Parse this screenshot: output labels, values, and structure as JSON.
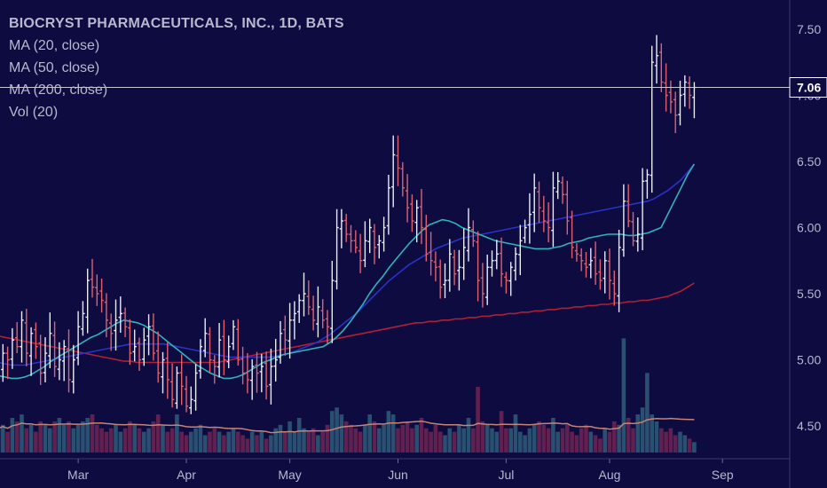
{
  "legend": {
    "title": "BIOCRYST PHARMACEUTICALS, INC., 1D, BATS",
    "ma20": "MA (20, close)",
    "ma50": "MA (50, close)",
    "ma200": "MA (200, close)",
    "vol": "Vol (20)"
  },
  "colors": {
    "background": "#0d0b3f",
    "up_bar": "#e8ecf6",
    "down_bar": "#e0606e",
    "ma20": "#2fb3be",
    "ma50": "#2a32c8",
    "ma200": "#b01f33",
    "vol_up": "#2c5877",
    "vol_down": "#6a2352",
    "vol_ma": "#c58474",
    "price_line": "#c8c8d6",
    "axis_line": "#3a3870"
  },
  "chart_data": {
    "type": "ohlc",
    "symbol": "BIOCRYST PHARMACEUTICALS, INC.",
    "interval": "1D",
    "exchange": "BATS",
    "y_ticks": [
      "7.50",
      "7.00",
      "6.50",
      "6.00",
      "5.50",
      "5.00",
      "4.50"
    ],
    "y_tick_values": [
      7.5,
      7.0,
      6.5,
      6.0,
      5.5,
      5.0,
      4.5
    ],
    "ylim": [
      4.4,
      7.6
    ],
    "current_price": 7.06,
    "current_price_label": "7.06",
    "x_ticks": [
      {
        "label": "Mar",
        "bar": 17
      },
      {
        "label": "Apr",
        "bar": 40
      },
      {
        "label": "May",
        "bar": 62
      },
      {
        "label": "Jun",
        "bar": 85
      },
      {
        "label": "Jul",
        "bar": 108
      },
      {
        "label": "Aug",
        "bar": 130
      },
      {
        "label": "Sep",
        "bar": 154
      }
    ],
    "bars_total_slots": 158,
    "closes": [
      4.95,
      5.05,
      5.0,
      5.15,
      5.1,
      5.3,
      5.05,
      5.2,
      5.1,
      4.9,
      5.05,
      5.2,
      4.95,
      5.0,
      5.1,
      4.85,
      5.0,
      5.25,
      5.35,
      5.6,
      5.55,
      5.5,
      5.45,
      5.3,
      5.2,
      5.3,
      5.35,
      5.25,
      5.05,
      5.1,
      5.0,
      5.15,
      5.25,
      5.05,
      4.9,
      5.0,
      4.85,
      4.7,
      4.9,
      4.8,
      4.65,
      4.7,
      4.9,
      5.1,
      5.2,
      5.0,
      4.95,
      5.15,
      5.0,
      5.1,
      5.25,
      5.0,
      4.9,
      4.85,
      4.95,
      4.9,
      4.95,
      4.8,
      4.95,
      5.0,
      5.2,
      5.15,
      5.3,
      5.35,
      5.45,
      5.5,
      5.4,
      5.3,
      5.4,
      5.3,
      5.25,
      5.6,
      6.0,
      6.05,
      5.95,
      5.9,
      5.85,
      5.75,
      5.9,
      6.0,
      5.85,
      5.9,
      6.0,
      6.3,
      6.55,
      6.45,
      6.3,
      6.15,
      6.05,
      6.15,
      6.0,
      5.8,
      5.75,
      5.7,
      5.55,
      5.6,
      5.8,
      5.65,
      5.7,
      5.85,
      6.0,
      5.9,
      5.6,
      5.5,
      5.7,
      5.75,
      5.8,
      5.65,
      5.6,
      5.7,
      5.8,
      5.9,
      6.0,
      6.1,
      6.3,
      6.15,
      6.05,
      6.0,
      6.3,
      6.35,
      6.25,
      6.05,
      5.85,
      5.8,
      5.75,
      5.7,
      5.75,
      5.65,
      5.6,
      5.75,
      5.6,
      5.5,
      5.85,
      6.2,
      6.05,
      5.9,
      5.95,
      6.35,
      6.4,
      7.25,
      7.3,
      7.1,
      7.0,
      6.95,
      6.85,
      7.0,
      7.1,
      7.0,
      7.06
    ],
    "volumes": [
      0.35,
      0.4,
      0.3,
      0.5,
      0.45,
      0.55,
      0.35,
      0.4,
      0.3,
      0.45,
      0.4,
      0.35,
      0.45,
      0.5,
      0.4,
      0.45,
      0.35,
      0.4,
      0.45,
      0.5,
      0.55,
      0.4,
      0.35,
      0.3,
      0.35,
      0.4,
      0.3,
      0.35,
      0.45,
      0.4,
      0.35,
      0.3,
      0.35,
      0.45,
      0.55,
      0.4,
      0.3,
      0.35,
      0.55,
      0.3,
      0.25,
      0.3,
      0.35,
      0.4,
      0.25,
      0.3,
      0.35,
      0.3,
      0.25,
      0.3,
      0.35,
      0.3,
      0.25,
      0.2,
      0.3,
      0.25,
      0.3,
      0.2,
      0.25,
      0.35,
      0.4,
      0.3,
      0.45,
      0.3,
      0.5,
      0.35,
      0.3,
      0.35,
      0.25,
      0.3,
      0.4,
      0.6,
      0.65,
      0.55,
      0.45,
      0.4,
      0.35,
      0.3,
      0.4,
      0.55,
      0.45,
      0.35,
      0.4,
      0.6,
      0.55,
      0.35,
      0.4,
      0.45,
      0.35,
      0.4,
      0.5,
      0.35,
      0.3,
      0.4,
      0.3,
      0.25,
      0.35,
      0.3,
      0.4,
      0.35,
      0.5,
      0.35,
      0.95,
      0.45,
      0.4,
      0.35,
      0.3,
      0.6,
      0.35,
      0.35,
      0.55,
      0.3,
      0.25,
      0.35,
      0.4,
      0.45,
      0.4,
      0.35,
      0.5,
      0.3,
      0.35,
      0.4,
      0.3,
      0.25,
      0.35,
      0.4,
      0.3,
      0.25,
      0.2,
      0.35,
      0.3,
      0.45,
      0.4,
      1.65,
      0.5,
      0.35,
      0.55,
      0.65,
      1.15,
      0.55,
      0.45,
      0.35,
      0.3,
      0.35,
      0.25,
      0.3,
      0.25,
      0.2,
      0.15
    ],
    "ma20": [
      4.88,
      4.87,
      4.86,
      4.86,
      4.87,
      4.89,
      4.92,
      4.95,
      4.99,
      5.02,
      5.05,
      5.08,
      5.11,
      5.14,
      5.17,
      5.19,
      5.22,
      5.25,
      5.28,
      5.3,
      5.29,
      5.28,
      5.26,
      5.23,
      5.2,
      5.16,
      5.12,
      5.08,
      5.04,
      5.0,
      4.96,
      4.93,
      4.9,
      4.88,
      4.86,
      4.86,
      4.87,
      4.89,
      4.92,
      4.95,
      4.98,
      5.0,
      5.02,
      5.04,
      5.05,
      5.06,
      5.07,
      5.08,
      5.09,
      5.1,
      5.13,
      5.17,
      5.22,
      5.28,
      5.35,
      5.42,
      5.5,
      5.57,
      5.63,
      5.7,
      5.76,
      5.82,
      5.88,
      5.93,
      5.98,
      6.02,
      6.04,
      6.06,
      6.05,
      6.03,
      6.0,
      5.98,
      5.96,
      5.94,
      5.92,
      5.9,
      5.89,
      5.88,
      5.87,
      5.86,
      5.85,
      5.84,
      5.84,
      5.84,
      5.85,
      5.86,
      5.88,
      5.89,
      5.9,
      5.92,
      5.93,
      5.94,
      5.95,
      5.95,
      5.95,
      5.94,
      5.94,
      5.95,
      5.96,
      5.98,
      6.0,
      6.1,
      6.2,
      6.3,
      6.4,
      6.48
    ],
    "ma50": [
      4.98,
      4.97,
      4.96,
      4.96,
      4.96,
      4.97,
      4.98,
      4.99,
      5.0,
      5.01,
      5.02,
      5.03,
      5.04,
      5.05,
      5.06,
      5.07,
      5.08,
      5.09,
      5.1,
      5.11,
      5.12,
      5.12,
      5.12,
      5.12,
      5.12,
      5.12,
      5.11,
      5.1,
      5.09,
      5.08,
      5.07,
      5.06,
      5.05,
      5.04,
      5.03,
      5.02,
      5.02,
      5.02,
      5.02,
      5.02,
      5.02,
      5.02,
      5.03,
      5.04,
      5.05,
      5.07,
      5.09,
      5.11,
      5.13,
      5.16,
      5.19,
      5.23,
      5.27,
      5.31,
      5.35,
      5.4,
      5.45,
      5.5,
      5.55,
      5.6,
      5.64,
      5.68,
      5.72,
      5.75,
      5.78,
      5.81,
      5.84,
      5.86,
      5.88,
      5.9,
      5.92,
      5.93,
      5.94,
      5.95,
      5.96,
      5.97,
      5.98,
      5.99,
      6.0,
      6.01,
      6.02,
      6.03,
      6.04,
      6.05,
      6.06,
      6.07,
      6.08,
      6.09,
      6.1,
      6.11,
      6.12,
      6.13,
      6.14,
      6.15,
      6.16,
      6.17,
      6.18,
      6.19,
      6.2,
      6.22,
      6.25,
      6.28,
      6.32,
      6.36,
      6.42,
      6.48
    ],
    "ma200": [
      5.18,
      5.17,
      5.16,
      5.15,
      5.14,
      5.13,
      5.12,
      5.11,
      5.1,
      5.09,
      5.08,
      5.07,
      5.06,
      5.05,
      5.04,
      5.03,
      5.02,
      5.01,
      5.0,
      4.99,
      4.99,
      4.98,
      4.98,
      4.98,
      4.98,
      4.98,
      4.98,
      4.98,
      4.98,
      4.98,
      4.98,
      4.98,
      4.98,
      4.98,
      4.99,
      5.0,
      5.01,
      5.02,
      5.03,
      5.04,
      5.05,
      5.06,
      5.07,
      5.08,
      5.09,
      5.1,
      5.11,
      5.12,
      5.13,
      5.14,
      5.15,
      5.16,
      5.17,
      5.18,
      5.19,
      5.2,
      5.21,
      5.22,
      5.23,
      5.24,
      5.25,
      5.26,
      5.27,
      5.28,
      5.28,
      5.29,
      5.29,
      5.3,
      5.3,
      5.31,
      5.31,
      5.32,
      5.32,
      5.33,
      5.33,
      5.34,
      5.34,
      5.35,
      5.35,
      5.36,
      5.36,
      5.37,
      5.37,
      5.38,
      5.38,
      5.39,
      5.39,
      5.4,
      5.4,
      5.41,
      5.41,
      5.42,
      5.42,
      5.43,
      5.43,
      5.44,
      5.44,
      5.45,
      5.45,
      5.46,
      5.47,
      5.48,
      5.5,
      5.52,
      5.55,
      5.58
    ]
  }
}
